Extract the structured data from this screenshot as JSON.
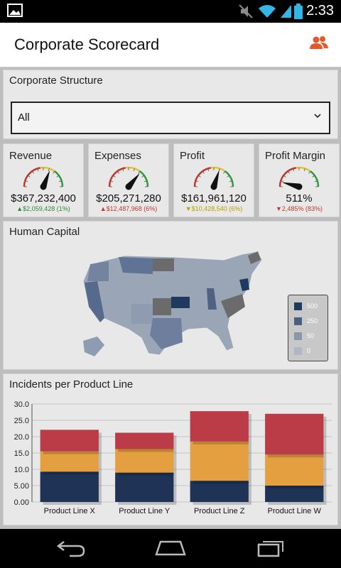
{
  "status": {
    "time": "2:33"
  },
  "app": {
    "title": "Corporate Scorecard"
  },
  "structure": {
    "title": "Corporate Structure",
    "selected": "All"
  },
  "kpis": [
    {
      "label": "Revenue",
      "value": "$367,232,400",
      "delta": "▲$2,059,428 (1%)",
      "color": "#2e8b2e",
      "needle": 0.62
    },
    {
      "label": "Expenses",
      "value": "$205,271,280",
      "delta": "▲$12,487,968 (6%)",
      "color": "#c0392b",
      "needle": 0.72
    },
    {
      "label": "Profit",
      "value": "$161,961,120",
      "delta": "▼$10,428,540 (6%)",
      "color": "#b8a200",
      "needle": 0.6
    },
    {
      "label": "Profit Margin",
      "value": "511%",
      "delta": "▼2,485% (83%)",
      "color": "#c0392b",
      "needle": 0.08
    }
  ],
  "human": {
    "title": "Human Capital",
    "legend": [
      "500",
      "250",
      "50",
      "0"
    ],
    "legend_colors": [
      "#1f3a5f",
      "#4a5f7f",
      "#8a97aa",
      "#b0b7c4"
    ]
  },
  "incidents": {
    "title": "Incidents per Product Line"
  },
  "chart_data": {
    "type": "bar",
    "stacked": true,
    "title": "Incidents per Product Line",
    "categories": [
      "Product Line X",
      "Product Line Y",
      "Product Line Z",
      "Product Line W"
    ],
    "series": [
      {
        "values": [
          9.3,
          9.0,
          6.5,
          5.0
        ],
        "color": "#1f3356"
      },
      {
        "values": [
          6.2,
          7.2,
          12.0,
          9.5
        ],
        "color": "#e4a040"
      },
      {
        "values": [
          6.6,
          5.0,
          9.3,
          12.5
        ],
        "color": "#bb3b46"
      }
    ],
    "ylim": [
      0,
      30
    ],
    "yticks": [
      "0.00",
      "5.00",
      "10.0",
      "15.0",
      "20.0",
      "25.0",
      "30.0"
    ]
  }
}
